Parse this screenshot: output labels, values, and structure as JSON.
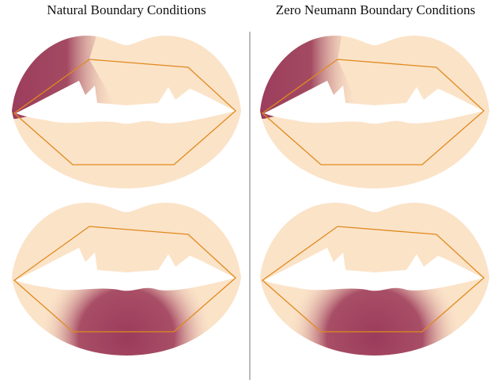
{
  "columns": [
    {
      "title": "Natural Boundary Conditions"
    },
    {
      "title": "Zero Neumann Boundary Conditions"
    }
  ]
}
